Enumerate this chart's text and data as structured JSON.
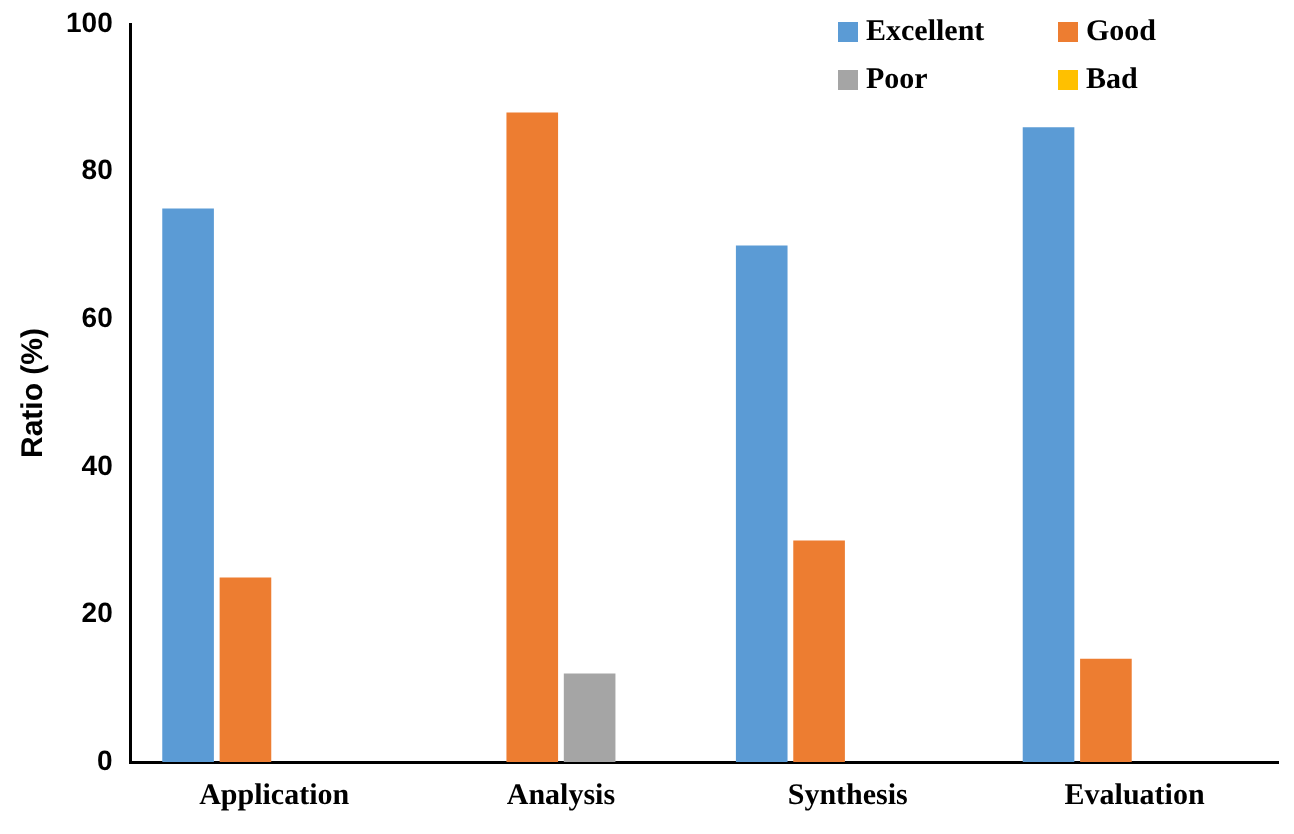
{
  "chart_data": {
    "type": "bar",
    "ylabel": "Ratio (%)",
    "categories": [
      "Application",
      "Analysis",
      "Synthesis",
      "Evaluation"
    ],
    "series": [
      {
        "name": "Excellent",
        "color": "#5b9bd5",
        "values": [
          75,
          0,
          70,
          86
        ]
      },
      {
        "name": "Good",
        "color": "#ed7d31",
        "values": [
          25,
          88,
          30,
          14
        ]
      },
      {
        "name": "Poor",
        "color": "#a5a5a5",
        "values": [
          0,
          12,
          0,
          0
        ]
      },
      {
        "name": "Bad",
        "color": "#ffc000",
        "values": [
          0,
          0,
          0,
          0
        ]
      }
    ],
    "ylim": [
      0,
      100
    ],
    "yticks": [
      0,
      20,
      40,
      60,
      80,
      100
    ],
    "grid": false,
    "legend": "top right"
  }
}
